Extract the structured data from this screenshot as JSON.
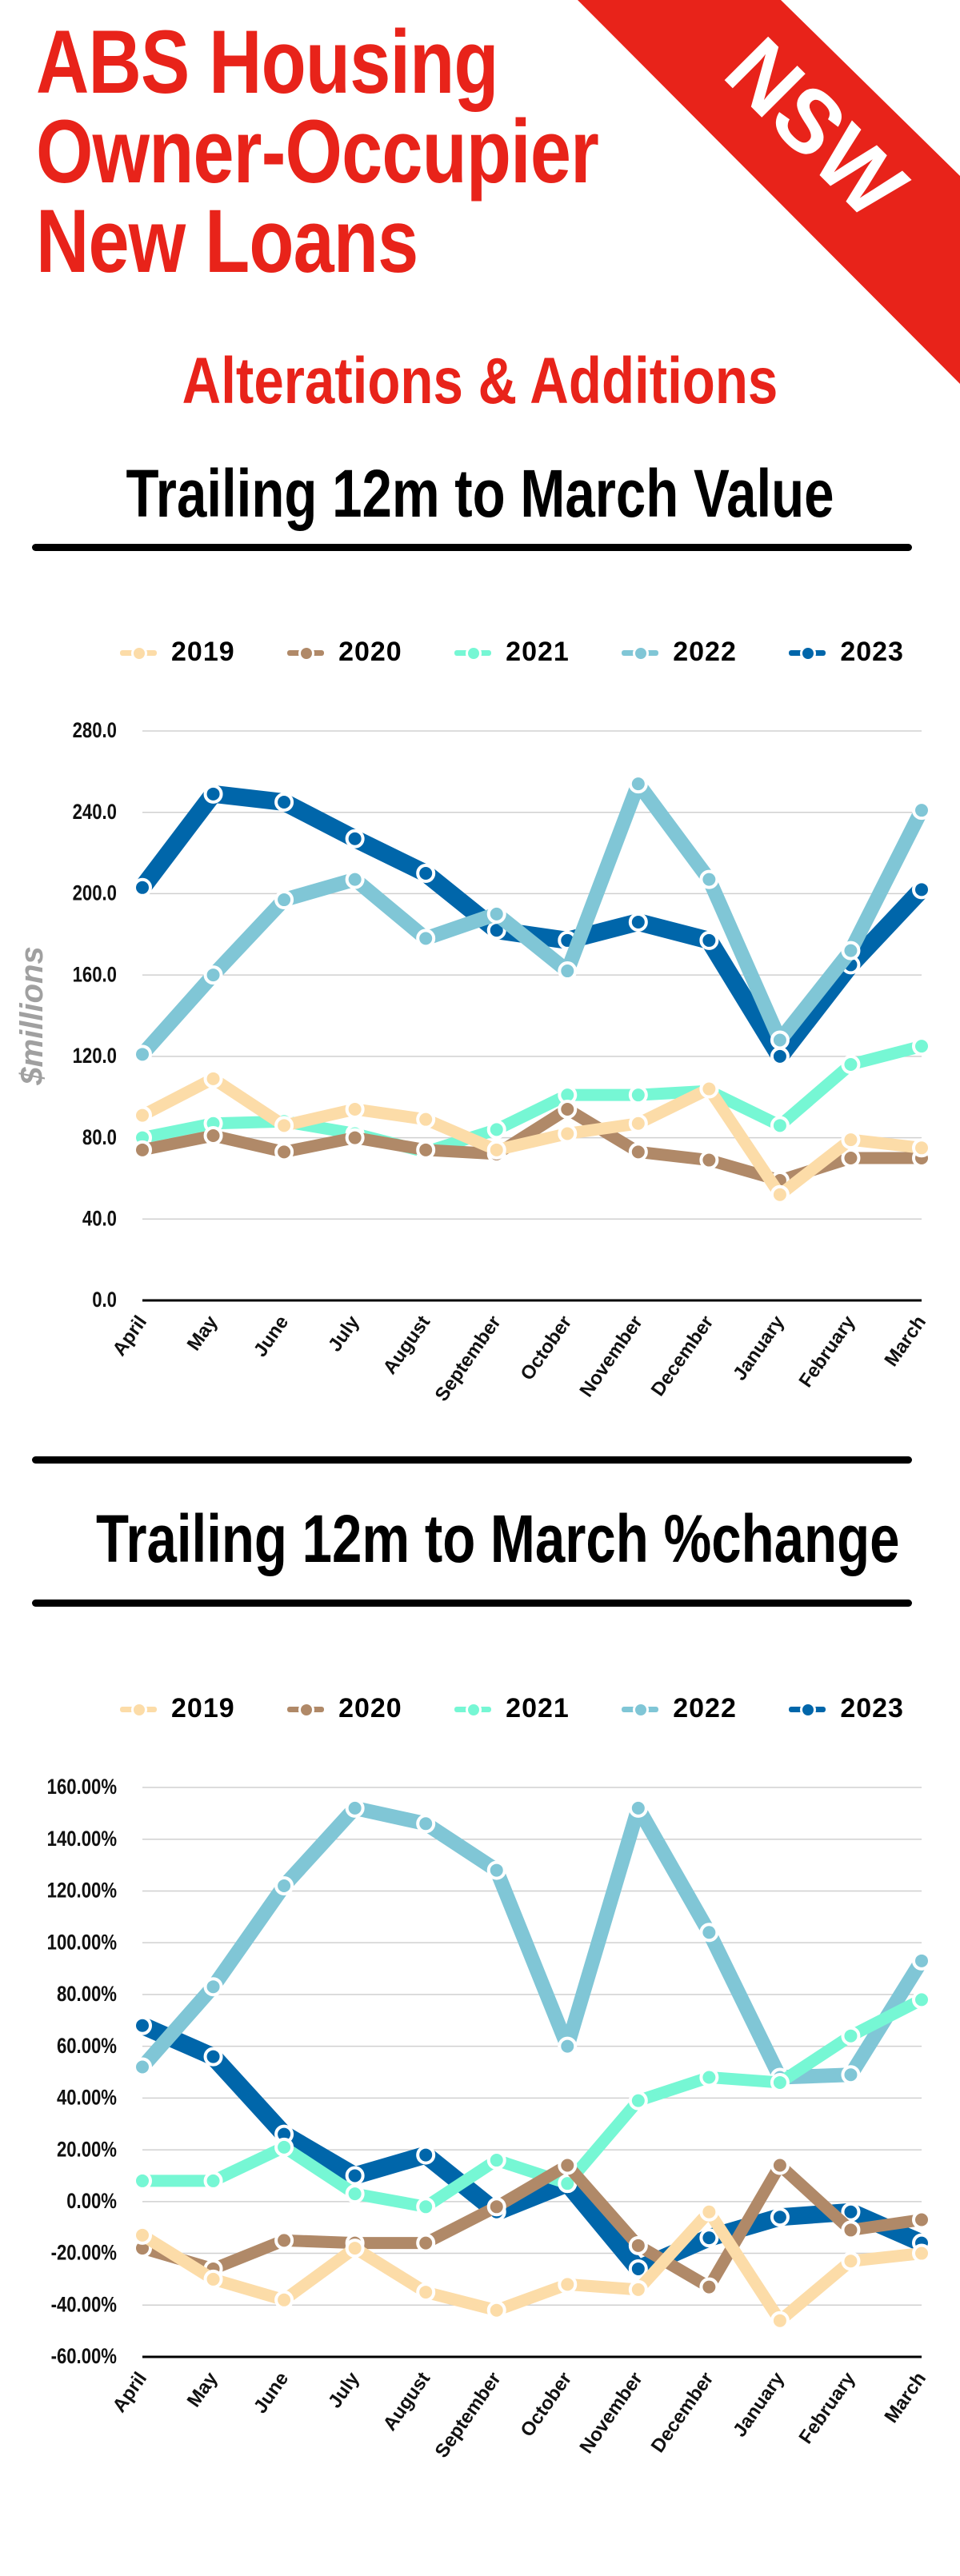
{
  "header": {
    "title_lines": [
      "ABS Housing",
      "Owner-Occupier",
      "New Loans"
    ],
    "subtitle": "Alterations & Additions",
    "badge": "NSW"
  },
  "colors": {
    "accent": "#e8231a",
    "2019": "#fcdca8",
    "2020": "#b08968",
    "2021": "#76f7d4",
    "2022": "#80c6d6",
    "2023": "#0066aa"
  },
  "chart_data": [
    {
      "type": "line",
      "title": "Trailing 12m to March Value",
      "xlabel": "",
      "ylabel": "$millions",
      "ylim": [
        0,
        280
      ],
      "yticks": [
        "0.0",
        "40.0",
        "80.0",
        "120.0",
        "160.0",
        "200.0",
        "240.0",
        "280.0"
      ],
      "ytick_values": [
        0,
        40,
        80,
        120,
        160,
        200,
        240,
        280
      ],
      "grid": true,
      "legend_position": "top",
      "categories": [
        "April",
        "May",
        "June",
        "July",
        "August",
        "September",
        "October",
        "November",
        "December",
        "January",
        "February",
        "March"
      ],
      "series": [
        {
          "name": "2023",
          "values": [
            203,
            249,
            245,
            227,
            210,
            182,
            177,
            186,
            177,
            120,
            165,
            202
          ]
        },
        {
          "name": "2022",
          "values": [
            121,
            160,
            197,
            207,
            178,
            190,
            162,
            254,
            207,
            128,
            172,
            241
          ]
        },
        {
          "name": "2021",
          "values": [
            80,
            87,
            88,
            82,
            73,
            84,
            101,
            101,
            103,
            86,
            116,
            125
          ]
        },
        {
          "name": "2020",
          "values": [
            74,
            81,
            73,
            80,
            74,
            72,
            94,
            73,
            69,
            59,
            70,
            70
          ]
        },
        {
          "name": "2019",
          "values": [
            91,
            109,
            86,
            94,
            89,
            74,
            82,
            87,
            104,
            52,
            79,
            75
          ]
        }
      ]
    },
    {
      "type": "line",
      "title": "Trailing 12m to March %change",
      "xlabel": "",
      "ylabel": "",
      "ylim": [
        -60,
        160
      ],
      "yticks": [
        "-60.00%",
        "-40.00%",
        "-20.00%",
        "0.00%",
        "20.00%",
        "40.00%",
        "60.00%",
        "80.00%",
        "100.00%",
        "120.00%",
        "140.00%",
        "160.00%"
      ],
      "ytick_values": [
        -60,
        -40,
        -20,
        0,
        20,
        40,
        60,
        80,
        100,
        120,
        140,
        160
      ],
      "grid": true,
      "legend_position": "top",
      "categories": [
        "April",
        "May",
        "June",
        "July",
        "August",
        "September",
        "October",
        "November",
        "December",
        "January",
        "February",
        "March"
      ],
      "series": [
        {
          "name": "2023",
          "values": [
            68,
            56,
            26,
            10,
            18,
            -4,
            7,
            -26,
            -14,
            -6,
            -4,
            -16
          ]
        },
        {
          "name": "2022",
          "values": [
            52,
            83,
            122,
            152,
            146,
            128,
            60,
            152,
            104,
            48,
            49,
            93
          ]
        },
        {
          "name": "2021",
          "values": [
            8,
            8,
            21,
            3,
            -2,
            16,
            7,
            39,
            48,
            46,
            64,
            78
          ]
        },
        {
          "name": "2020",
          "values": [
            -18,
            -26,
            -15,
            -16,
            -16,
            -2,
            14,
            -17,
            -33,
            14,
            -11,
            -7
          ]
        },
        {
          "name": "2019",
          "values": [
            -13,
            -30,
            -38,
            -18,
            -35,
            -42,
            -32,
            -34,
            -4,
            -46,
            -23,
            -20
          ]
        }
      ]
    }
  ],
  "legend": [
    "2019",
    "2020",
    "2021",
    "2022",
    "2023"
  ]
}
